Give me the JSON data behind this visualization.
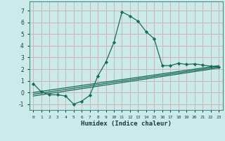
{
  "xlabel": "Humidex (Indice chaleur)",
  "background_color": "#cdeaea",
  "grid_color": "#c8b8b8",
  "line_color": "#1a6b5a",
  "xlim": [
    -0.5,
    23.5
  ],
  "ylim": [
    -1.5,
    7.8
  ],
  "xtick_labels": [
    "0",
    "1",
    "2",
    "3",
    "4",
    "5",
    "6",
    "7",
    "8",
    "9",
    "10",
    "11",
    "12",
    "13",
    "14",
    "15",
    "16",
    "17",
    "18",
    "19",
    "20",
    "21",
    "22",
    "23"
  ],
  "ytick_values": [
    -1,
    0,
    1,
    2,
    3,
    4,
    5,
    6,
    7
  ],
  "series_main": {
    "x": [
      0,
      1,
      2,
      3,
      4,
      5,
      6,
      7,
      8,
      9,
      10,
      11,
      12,
      13,
      14,
      15,
      16,
      17,
      18,
      19,
      20,
      21,
      22,
      23
    ],
    "y": [
      0.75,
      0.05,
      -0.2,
      -0.2,
      -0.3,
      -1.0,
      -0.75,
      -0.25,
      1.4,
      2.6,
      4.3,
      6.9,
      6.55,
      6.1,
      5.2,
      4.6,
      2.3,
      2.3,
      2.5,
      2.4,
      2.45,
      2.35,
      2.25,
      2.2
    ]
  },
  "series_line1": {
    "x": [
      0,
      23
    ],
    "y": [
      0.0,
      2.3
    ]
  },
  "series_line2": {
    "x": [
      0,
      23
    ],
    "y": [
      -0.15,
      2.2
    ]
  },
  "series_line3": {
    "x": [
      0,
      23
    ],
    "y": [
      -0.3,
      2.1
    ]
  }
}
